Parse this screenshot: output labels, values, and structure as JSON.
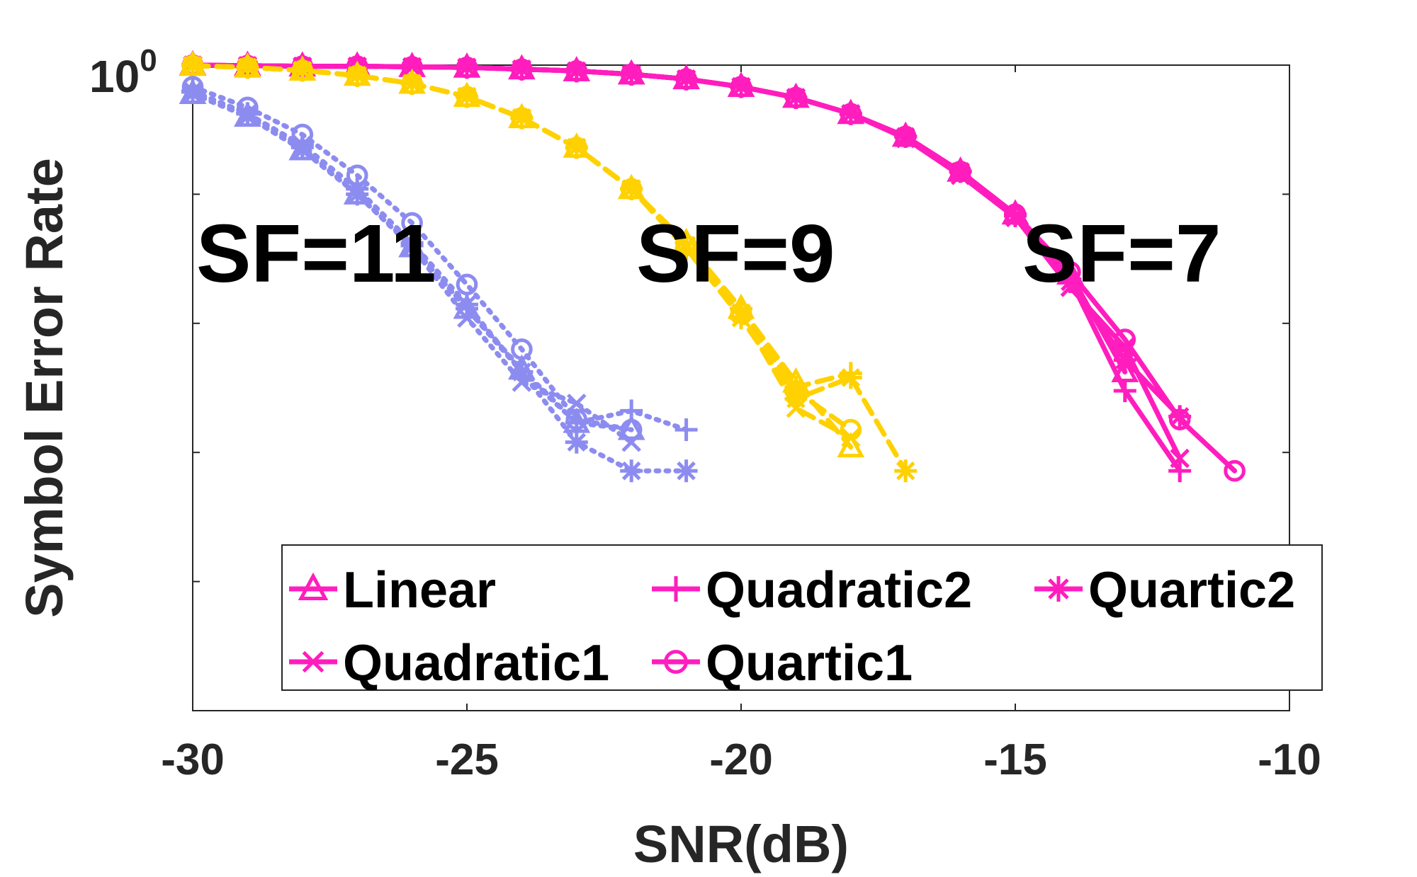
{
  "chart_data": {
    "type": "line",
    "xlabel": "SNR(dB)",
    "ylabel": "Symbol Error Rate",
    "xlim": [
      -30,
      -10
    ],
    "xticks": [
      -30,
      -25,
      -20,
      -15,
      -10
    ],
    "xtick_labels": [
      "-30",
      "-25",
      "-20",
      "-15",
      "-10"
    ],
    "y_scale": "log",
    "ylim": [
      1e-05,
      1
    ],
    "ytick_label": {
      "base": "10",
      "exponent": "0"
    },
    "grid": false,
    "legend_placement": "bottom-right",
    "legend": [
      {
        "label": "Linear",
        "marker": "triangle"
      },
      {
        "label": "Quadratic2",
        "marker": "plus"
      },
      {
        "label": "Quartic2",
        "marker": "asterisk"
      },
      {
        "label": "Quadratic1",
        "marker": "x"
      },
      {
        "label": "Quartic1",
        "marker": "circle"
      }
    ],
    "annotations": [
      {
        "text": "SF=11",
        "group": "SF=11"
      },
      {
        "text": "SF=9",
        "group": "SF=9"
      },
      {
        "text": "SF=7",
        "group": "SF=7"
      }
    ],
    "groups": [
      {
        "name": "SF=7",
        "color": "#FF1DBE",
        "linestyle": "solid",
        "series": [
          {
            "name": "Linear",
            "marker": "triangle",
            "x": [
              -30,
              -29,
              -28,
              -27,
              -26,
              -25,
              -24,
              -23,
              -22,
              -21,
              -20,
              -19,
              -18,
              -17,
              -16,
              -15,
              -14,
              -13
            ],
            "y": [
              1,
              0.99,
              0.98,
              0.98,
              0.97,
              0.96,
              0.93,
              0.9,
              0.85,
              0.78,
              0.68,
              0.56,
              0.42,
              0.28,
              0.15,
              0.07,
              0.024,
              0.0042
            ]
          },
          {
            "name": "Quadratic2",
            "marker": "plus",
            "x": [
              -30,
              -29,
              -28,
              -27,
              -26,
              -25,
              -24,
              -23,
              -22,
              -21,
              -20,
              -19,
              -18,
              -17,
              -16,
              -15,
              -14,
              -13,
              -12
            ],
            "y": [
              1,
              0.99,
              0.98,
              0.98,
              0.97,
              0.96,
              0.93,
              0.9,
              0.85,
              0.78,
              0.68,
              0.56,
              0.42,
              0.28,
              0.15,
              0.07,
              0.022,
              0.003,
              0.00072
            ]
          },
          {
            "name": "Quartic2",
            "marker": "asterisk",
            "x": [
              -30,
              -29,
              -28,
              -27,
              -26,
              -25,
              -24,
              -23,
              -22,
              -21,
              -20,
              -19,
              -18,
              -17,
              -16,
              -15,
              -14,
              -13,
              -12
            ],
            "y": [
              1,
              0.99,
              0.98,
              0.98,
              0.97,
              0.96,
              0.93,
              0.9,
              0.85,
              0.78,
              0.68,
              0.56,
              0.42,
              0.28,
              0.15,
              0.068,
              0.021,
              0.0052,
              0.0019
            ]
          },
          {
            "name": "Quadratic1",
            "marker": "x",
            "x": [
              -30,
              -29,
              -28,
              -27,
              -26,
              -25,
              -24,
              -23,
              -22,
              -21,
              -20,
              -19,
              -18,
              -17,
              -16,
              -15,
              -14,
              -13,
              -12
            ],
            "y": [
              1,
              0.99,
              0.98,
              0.98,
              0.97,
              0.96,
              0.93,
              0.9,
              0.85,
              0.78,
              0.68,
              0.56,
              0.42,
              0.27,
              0.14,
              0.066,
              0.019,
              0.0065,
              0.0009
            ]
          },
          {
            "name": "Quartic1",
            "marker": "circle",
            "x": [
              -30,
              -29,
              -28,
              -27,
              -26,
              -25,
              -24,
              -23,
              -22,
              -21,
              -20,
              -19,
              -18,
              -17,
              -16,
              -15,
              -14,
              -13,
              -12,
              -11
            ],
            "y": [
              1,
              0.99,
              0.98,
              0.98,
              0.97,
              0.96,
              0.93,
              0.9,
              0.85,
              0.78,
              0.68,
              0.56,
              0.42,
              0.28,
              0.15,
              0.07,
              0.025,
              0.0075,
              0.0018,
              0.00072
            ]
          }
        ]
      },
      {
        "name": "SF=9",
        "color": "#FFD100",
        "linestyle": "dashed",
        "series": [
          {
            "name": "Linear",
            "marker": "triangle",
            "x": [
              -30,
              -29,
              -28,
              -27,
              -26,
              -25,
              -24,
              -23,
              -22,
              -21,
              -20,
              -19,
              -18
            ],
            "y": [
              0.99,
              0.96,
              0.91,
              0.83,
              0.72,
              0.57,
              0.39,
              0.23,
              0.11,
              0.042,
              0.013,
              0.0035,
              0.0011
            ]
          },
          {
            "name": "Quadratic2",
            "marker": "plus",
            "x": [
              -30,
              -29,
              -28,
              -27,
              -26,
              -25,
              -24,
              -23,
              -22,
              -21,
              -20,
              -19,
              -18
            ],
            "y": [
              0.99,
              0.96,
              0.91,
              0.83,
              0.72,
              0.57,
              0.39,
              0.23,
              0.11,
              0.042,
              0.013,
              0.0032,
              0.0041
            ]
          },
          {
            "name": "Quartic2",
            "marker": "asterisk",
            "x": [
              -30,
              -29,
              -28,
              -27,
              -26,
              -25,
              -24,
              -23,
              -22,
              -21,
              -20,
              -19,
              -18,
              -17
            ],
            "y": [
              0.99,
              0.96,
              0.91,
              0.83,
              0.72,
              0.57,
              0.39,
              0.23,
              0.11,
              0.038,
              0.011,
              0.0026,
              0.0038,
              0.00072
            ]
          },
          {
            "name": "Quadratic1",
            "marker": "x",
            "x": [
              -30,
              -29,
              -28,
              -27,
              -26,
              -25,
              -24,
              -23,
              -22,
              -21,
              -20,
              -19,
              -18
            ],
            "y": [
              0.99,
              0.96,
              0.91,
              0.83,
              0.72,
              0.57,
              0.39,
              0.23,
              0.11,
              0.04,
              0.012,
              0.0022,
              0.0013
            ]
          },
          {
            "name": "Quartic1",
            "marker": "circle",
            "x": [
              -30,
              -29,
              -28,
              -27,
              -26,
              -25,
              -24,
              -23,
              -22,
              -21,
              -20,
              -19,
              -18
            ],
            "y": [
              0.99,
              0.96,
              0.91,
              0.83,
              0.72,
              0.57,
              0.39,
              0.23,
              0.11,
              0.04,
              0.012,
              0.003,
              0.0015
            ]
          }
        ]
      },
      {
        "name": "SF=11",
        "color": "#8C8CF0",
        "linestyle": "dotted",
        "series": [
          {
            "name": "Linear",
            "marker": "triangle",
            "x": [
              -30,
              -29,
              -28,
              -27,
              -26,
              -25,
              -24,
              -23,
              -22
            ],
            "y": [
              0.6,
              0.4,
              0.22,
              0.1,
              0.039,
              0.013,
              0.0044,
              0.0017,
              0.0015
            ]
          },
          {
            "name": "Quadratic2",
            "marker": "plus",
            "x": [
              -30,
              -29,
              -28,
              -27,
              -26,
              -25,
              -24,
              -23,
              -22,
              -21
            ],
            "y": [
              0.62,
              0.42,
              0.23,
              0.1,
              0.04,
              0.013,
              0.0042,
              0.0017,
              0.0021,
              0.0015
            ]
          },
          {
            "name": "Quartic2",
            "marker": "asterisk",
            "x": [
              -30,
              -29,
              -28,
              -27,
              -26,
              -25,
              -24,
              -23,
              -22,
              -21
            ],
            "y": [
              0.63,
              0.42,
              0.24,
              0.11,
              0.042,
              0.014,
              0.0042,
              0.0012,
              0.00072,
              0.00072
            ]
          },
          {
            "name": "Quadratic1",
            "marker": "x",
            "x": [
              -30,
              -29,
              -28,
              -27,
              -26,
              -25,
              -24,
              -23,
              -22
            ],
            "y": [
              0.6,
              0.4,
              0.22,
              0.1,
              0.039,
              0.011,
              0.0035,
              0.0024,
              0.0012
            ]
          },
          {
            "name": "Quartic1",
            "marker": "circle",
            "x": [
              -30,
              -29,
              -28,
              -27,
              -26,
              -25,
              -24,
              -23,
              -22
            ],
            "y": [
              0.68,
              0.47,
              0.29,
              0.14,
              0.06,
              0.02,
              0.0063,
              0.0018,
              0.0015
            ]
          }
        ]
      }
    ]
  }
}
